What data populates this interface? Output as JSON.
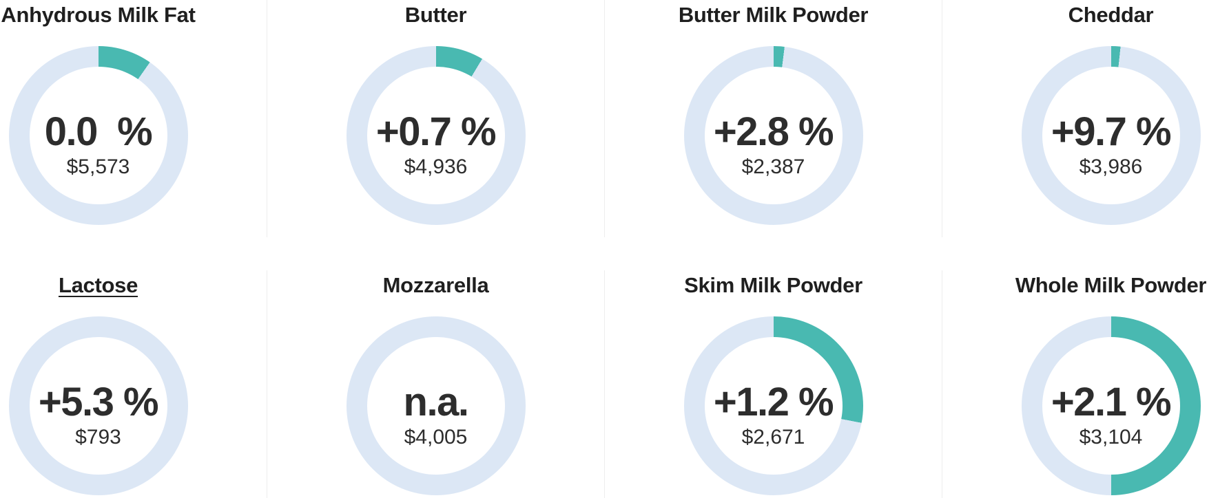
{
  "page": {
    "background": "#ffffff",
    "divider_color": "#ededed"
  },
  "chart_data": {
    "type": "donut",
    "layout": {
      "grid": "4 columns x 2 rows",
      "legend": "none",
      "arc_start": "12 o'clock, clockwise"
    },
    "colors": {
      "arc_teal": "#49b9b1",
      "track_blue": "#dce7f5",
      "title_text": "#1f1f1f",
      "value_text": "#2d2d2d"
    },
    "products": [
      {
        "name": "Anhydrous Milk Fat",
        "change_label": "0.0  %",
        "change_pct": 0.0,
        "price_label": "$5,573",
        "price_usd": 5573,
        "arc_deg": 35,
        "underlined": false
      },
      {
        "name": "Butter",
        "change_label": "+0.7 %",
        "change_pct": 0.7,
        "price_label": "$4,936",
        "price_usd": 4936,
        "arc_deg": 31,
        "underlined": false
      },
      {
        "name": "Butter Milk Powder",
        "change_label": "+2.8 %",
        "change_pct": 2.8,
        "price_label": "$2,387",
        "price_usd": 2387,
        "arc_deg": 7,
        "underlined": false
      },
      {
        "name": "Cheddar",
        "change_label": "+9.7 %",
        "change_pct": 9.7,
        "price_label": "$3,986",
        "price_usd": 3986,
        "arc_deg": 6,
        "underlined": false
      },
      {
        "name": "Lactose",
        "change_label": "+5.3 %",
        "change_pct": 5.3,
        "price_label": "$793",
        "price_usd": 793,
        "arc_deg": 0,
        "underlined": true
      },
      {
        "name": "Mozzarella",
        "change_label": "n.a.",
        "change_pct": null,
        "price_label": "$4,005",
        "price_usd": 4005,
        "arc_deg": 0,
        "underlined": false
      },
      {
        "name": "Skim Milk Powder",
        "change_label": "+1.2 %",
        "change_pct": 1.2,
        "price_label": "$2,671",
        "price_usd": 2671,
        "arc_deg": 101,
        "underlined": false
      },
      {
        "name": "Whole Milk Powder",
        "change_label": "+2.1 %",
        "change_pct": 2.1,
        "price_label": "$3,104",
        "price_usd": 3104,
        "arc_deg": 180,
        "underlined": false
      }
    ]
  }
}
